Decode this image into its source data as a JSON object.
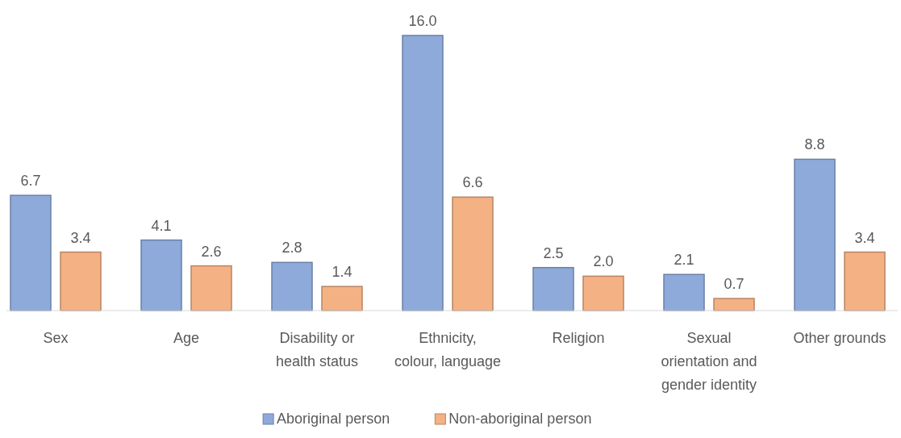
{
  "chart_data": {
    "type": "bar",
    "categories": [
      "Sex",
      "Age",
      "Disability or health status",
      "Ethnicity, colour, language",
      "Religion",
      "Sexual orientation and gender identity",
      "Other grounds"
    ],
    "series": [
      {
        "name": "Aboriginal person",
        "color": "#8eaadb",
        "values": [
          6.7,
          4.1,
          2.8,
          16.0,
          2.5,
          2.1,
          8.8
        ],
        "value_labels": [
          "6.7",
          "4.1",
          "2.8",
          "16.0",
          "2.5",
          "2.1",
          "8.8"
        ]
      },
      {
        "name": "Non-aboriginal person",
        "color": "#f4b183",
        "values": [
          3.4,
          2.6,
          1.4,
          6.6,
          2.0,
          0.7,
          3.4
        ],
        "value_labels": [
          "3.4",
          "2.6",
          "1.4",
          "6.6",
          "2.0",
          "0.7",
          "3.4"
        ]
      }
    ],
    "legend": "bottom"
  }
}
